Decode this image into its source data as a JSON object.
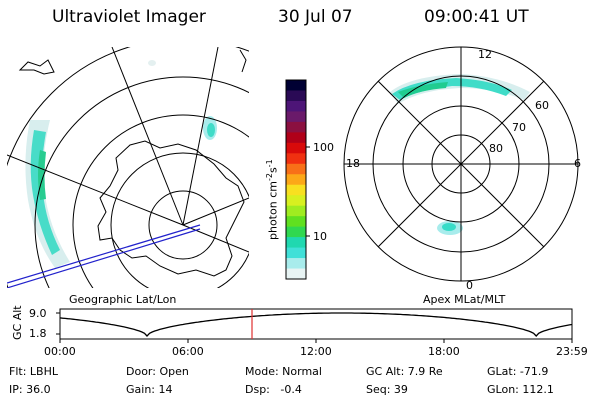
{
  "header": {
    "instrument": "Ultraviolet Imager",
    "date": "30 Jul 07",
    "time": "09:00:41 UT"
  },
  "maps": {
    "left_caption": "Geographic Lat/Lon",
    "right_caption": "Apex MLat/MLT",
    "right_labels": {
      "top": "12",
      "bottom": "0",
      "left": "18",
      "right": "6",
      "ring_60": "60",
      "ring_70": "70",
      "ring_80": "80"
    }
  },
  "colorbar": {
    "unit_label": "photon cm",
    "unit_sup1": "-2",
    "unit_s": "s",
    "unit_sup2": "-1",
    "tick_100": "100",
    "tick_10": "10",
    "colors": [
      "#000033",
      "#2a0a55",
      "#4d1577",
      "#6a1a6a",
      "#8b1040",
      "#b00018",
      "#d80a0a",
      "#f03010",
      "#f87018",
      "#fca818",
      "#f8e020",
      "#d8f020",
      "#a0ec20",
      "#60e020",
      "#30d850",
      "#20d8b0",
      "#40e0d8",
      "#a8ecec",
      "#e8f4f4"
    ]
  },
  "altitude_plot": {
    "ylabel": "GC Alt",
    "y_max_label": "9.0",
    "y_min_label": "1.8",
    "x_ticks": [
      "00:00",
      "06:00",
      "12:00",
      "18:00",
      "23:59"
    ],
    "current_time_fraction": 0.375,
    "marker_color": "#e03030"
  },
  "info": {
    "row1": {
      "flt": "Flt: LBHL",
      "door": "Door: Open",
      "mode": "Mode: Normal",
      "gc_alt": "GC Alt: 7.9 Re",
      "glat": "GLat: -71.9"
    },
    "row2": {
      "ip": "IP: 36.0",
      "gain": "Gain: 14",
      "dsp": "Dsp:   -0.4",
      "seq": "Seq: 39",
      "glon": "GLon: 112.1"
    }
  }
}
